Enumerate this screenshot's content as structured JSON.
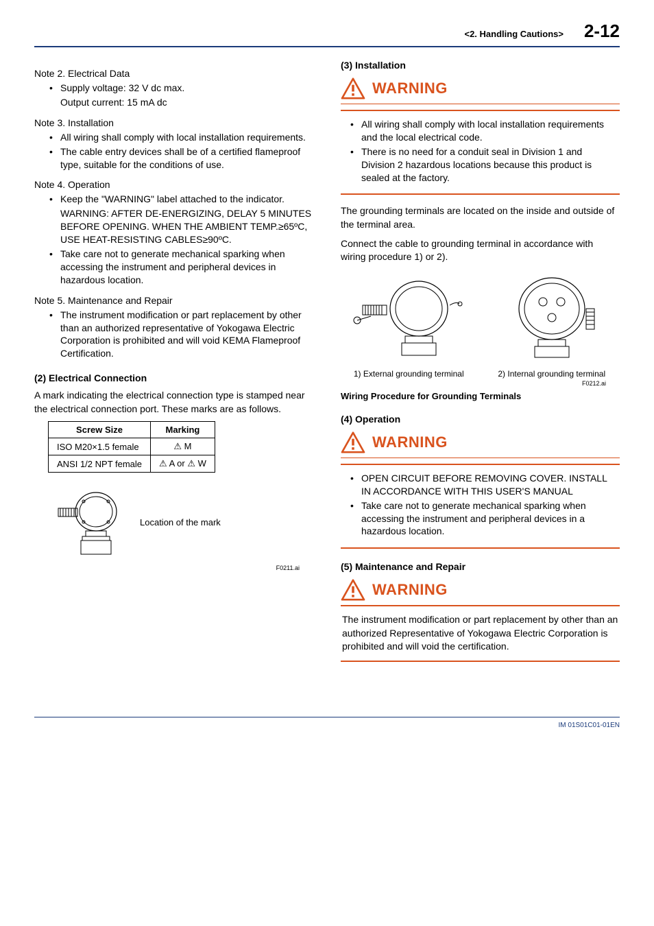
{
  "header": {
    "section": "<2.  Handling Cautions>",
    "page": "2-12"
  },
  "left": {
    "note2": {
      "title": "Note 2.  Electrical Data",
      "items": [
        "Supply voltage: 32 V dc max.",
        "Output current: 15 mA dc"
      ],
      "items_continuation": [
        false,
        true
      ]
    },
    "note3": {
      "title": "Note 3.  Installation",
      "items": [
        "All wiring shall comply with local installation requirements.",
        "The cable entry devices shall be of a certified flameproof type, suitable for the conditions of use."
      ]
    },
    "note4": {
      "title": "Note 4.  Operation",
      "items": [
        "Keep the \"WARNING\" label attached to the indicator.",
        "WARNING: AFTER DE-ENERGIZING, DELAY 5 MINUTES BEFORE OPENING. WHEN THE AMBIENT TEMP.≥65ºC, USE HEAT-RESISTING CABLES≥90ºC.",
        "Take care not to generate mechanical sparking when accessing the instrument and peripheral devices in hazardous location."
      ],
      "items_continuation": [
        false,
        true,
        false
      ]
    },
    "note5": {
      "title": "Note 5.  Maintenance and Repair",
      "items": [
        "The instrument modification or part replacement by other than an authorized representative of Yokogawa Electric Corporation is prohibited and will void KEMA Flameproof Certification."
      ]
    },
    "sec2": {
      "heading": "(2)   Electrical Connection",
      "para": "A mark indicating the electrical connection type is stamped near the electrical connection port. These marks are as follows.",
      "table": {
        "headers": [
          "Screw Size",
          "Marking"
        ],
        "rows": [
          [
            "ISO M20×1.5 female",
            "⚠ M"
          ],
          [
            "ANSI 1/2 NPT female",
            "⚠ A or ⚠ W"
          ]
        ]
      },
      "mark_label": "Location of the mark",
      "fig_id": "F0211.ai"
    }
  },
  "right": {
    "sec3": {
      "heading": "(3)   Installation",
      "warning_label": "WARNING",
      "warn_items": [
        "All wiring shall comply with local installation requirements and the local electrical code.",
        "There is no need for a conduit seal in Division 1 and Division 2 hazardous locations because this product is sealed at the factory."
      ],
      "para1": "The grounding terminals are located on the inside and outside of the terminal area.",
      "para2": "Connect the cable to grounding terminal in accordance with wiring procedure 1) or 2).",
      "ground_left": "1) External grounding terminal",
      "ground_right": "2) Internal grounding terminal",
      "fig_id": "F0212.ai",
      "fig_title": "Wiring Procedure for Grounding Terminals"
    },
    "sec4": {
      "heading": "(4)   Operation",
      "warning_label": "WARNING",
      "warn_items": [
        "OPEN CIRCUIT BEFORE REMOVING COVER. INSTALL IN ACCORDANCE WITH THIS USER'S MANUAL",
        "Take care not to generate mechanical sparking when accessing the instrument and peripheral devices in a hazardous location."
      ]
    },
    "sec5": {
      "heading": "(5)   Maintenance and Repair",
      "warning_label": "WARNING",
      "warn_para": "The instrument modification or part replacement by other than an authorized Representative of Yokogawa Electric Corporation is prohibited and will void the certification."
    }
  },
  "footer": {
    "doc_id": "IM 01S01C01-01EN"
  },
  "colors": {
    "accent_blue": "#1a3a7a",
    "warn_orange": "#d9531e",
    "text": "#000000",
    "bg": "#ffffff"
  }
}
